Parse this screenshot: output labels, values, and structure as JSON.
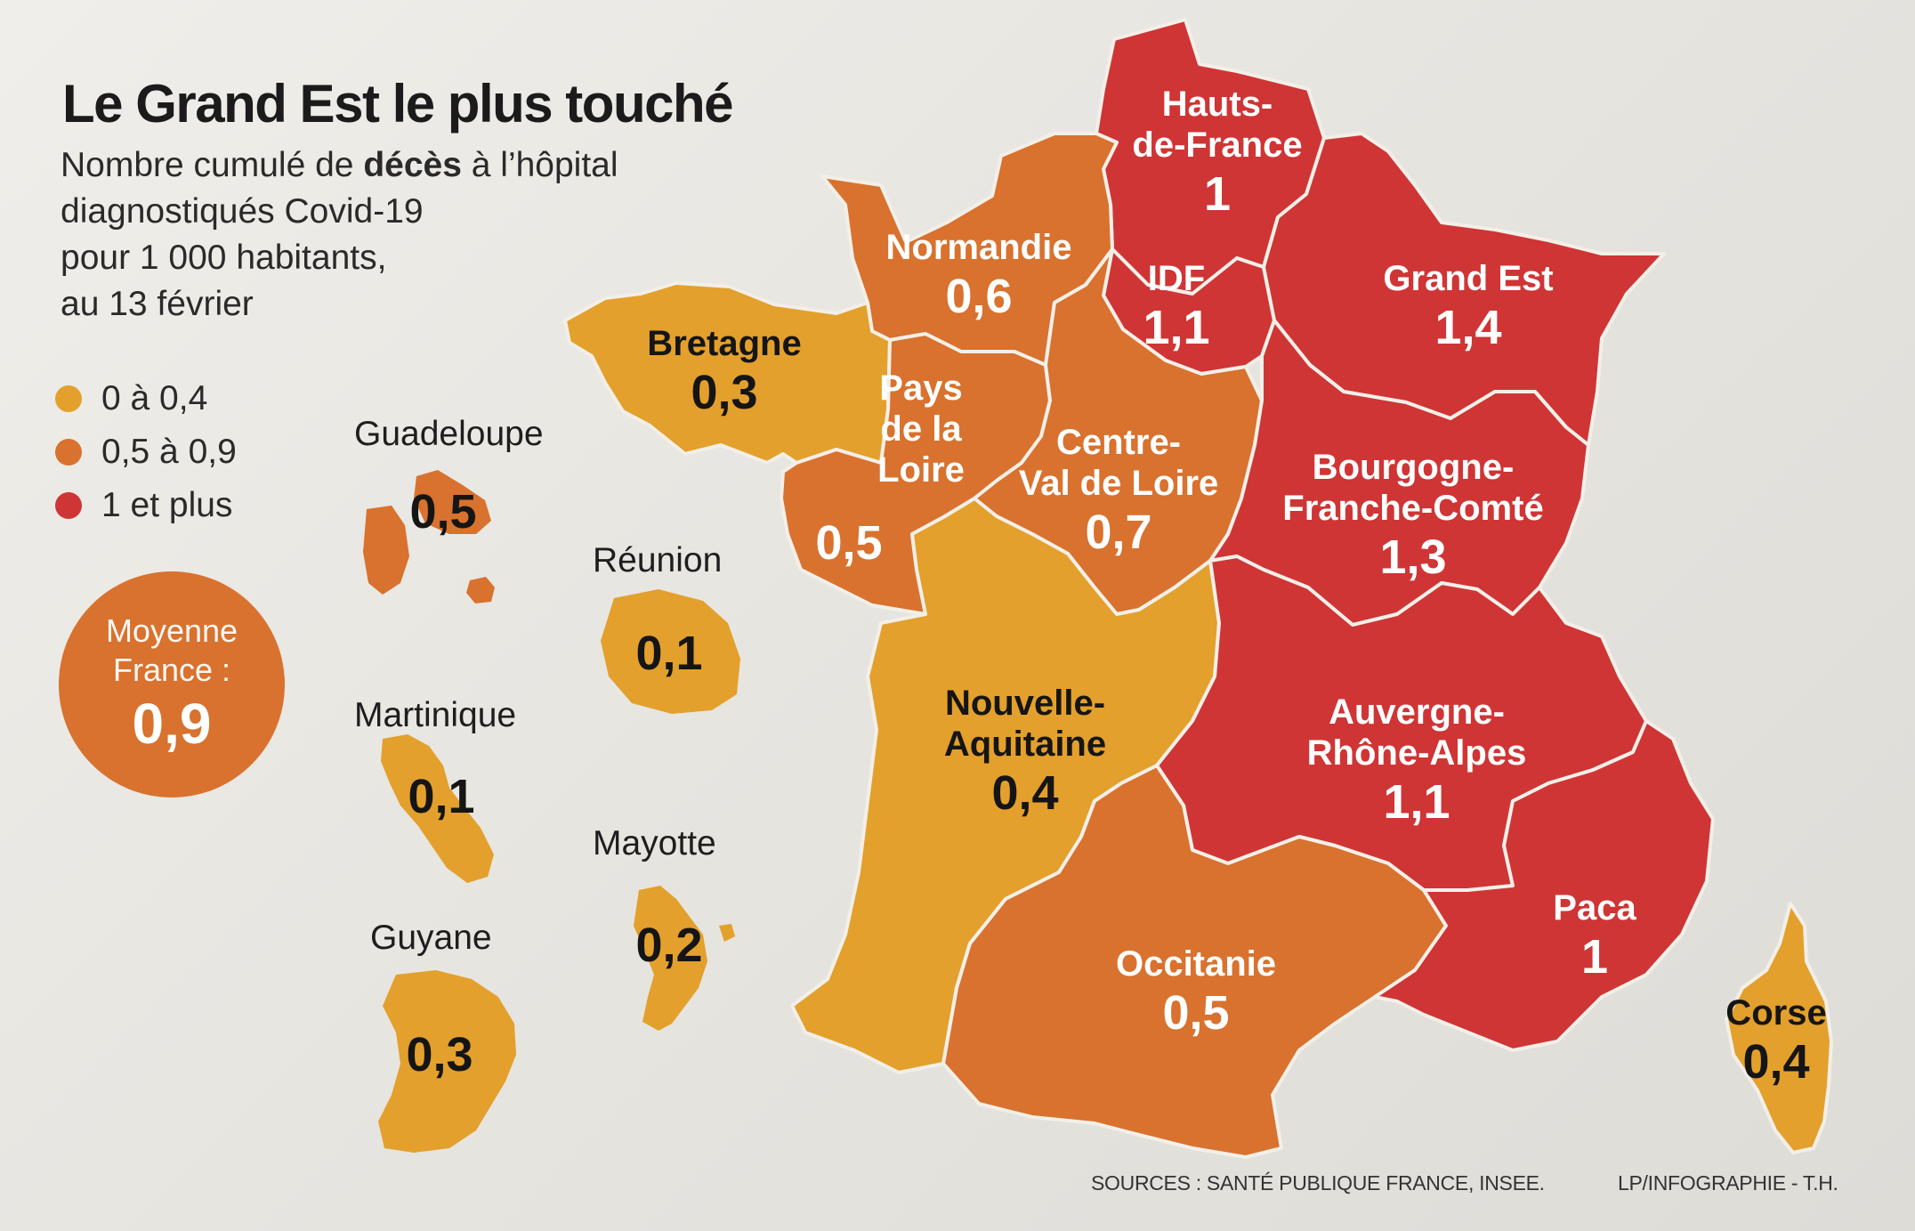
{
  "title": "Le Grand Est le plus touché",
  "subtitle": {
    "line1_pre": "Nombre cumulé de ",
    "line1_bold": "décès",
    "line1_post": " à l’hôpital",
    "line2": "diagnostiqués Covid-19",
    "line3": "pour 1 000 habitants,",
    "line4": "au 13 février"
  },
  "colors": {
    "low": "#e3a02c",
    "mid": "#d8722e",
    "high": "#cf3535",
    "average_circle": "#d8722e"
  },
  "legend": [
    {
      "label": "0 à 0,4",
      "level": "low"
    },
    {
      "label": "0,5 à 0,9",
      "level": "mid"
    },
    {
      "label": "1 et plus",
      "level": "high"
    }
  ],
  "average": {
    "label_line1": "Moyenne",
    "label_line2": "France :",
    "value": "0,9"
  },
  "regions": [
    {
      "key": "hauts_de_france",
      "name_lines": [
        "Hauts-",
        "de-France"
      ],
      "value": "1",
      "level": "high"
    },
    {
      "key": "normandie",
      "name_lines": [
        "Normandie"
      ],
      "value": "0,6",
      "level": "mid"
    },
    {
      "key": "idf",
      "name_lines": [
        "IDF"
      ],
      "value": "1,1",
      "level": "high"
    },
    {
      "key": "grand_est",
      "name_lines": [
        "Grand Est"
      ],
      "value": "1,4",
      "level": "high"
    },
    {
      "key": "bretagne",
      "name_lines": [
        "Bretagne"
      ],
      "value": "0,3",
      "level": "low"
    },
    {
      "key": "pays_de_la_loire",
      "name_lines": [
        "Pays",
        "de la",
        "Loire"
      ],
      "value": "0,5",
      "level": "mid"
    },
    {
      "key": "centre_val_de_loire",
      "name_lines": [
        "Centre-",
        "Val de Loire"
      ],
      "value": "0,7",
      "level": "mid"
    },
    {
      "key": "bourgogne_franche_comte",
      "name_lines": [
        "Bourgogne-",
        "Franche-Comté"
      ],
      "value": "1,3",
      "level": "high"
    },
    {
      "key": "nouvelle_aquitaine",
      "name_lines": [
        "Nouvelle-",
        "Aquitaine"
      ],
      "value": "0,4",
      "level": "low"
    },
    {
      "key": "auvergne_rhone_alpes",
      "name_lines": [
        "Auvergne-",
        "Rhône-Alpes"
      ],
      "value": "1,1",
      "level": "high"
    },
    {
      "key": "occitanie",
      "name_lines": [
        "Occitanie"
      ],
      "value": "0,5",
      "level": "mid"
    },
    {
      "key": "paca",
      "name_lines": [
        "Paca"
      ],
      "value": "1",
      "level": "high"
    },
    {
      "key": "corse",
      "name_lines": [
        "Corse"
      ],
      "value": "0,4",
      "level": "low"
    }
  ],
  "overseas": [
    {
      "key": "guadeloupe",
      "name": "Guadeloupe",
      "value": "0,5",
      "level": "mid"
    },
    {
      "key": "reunion",
      "name": "Réunion",
      "value": "0,1",
      "level": "low"
    },
    {
      "key": "martinique",
      "name": "Martinique",
      "value": "0,1",
      "level": "low"
    },
    {
      "key": "mayotte",
      "name": "Mayotte",
      "value": "0,2",
      "level": "low"
    },
    {
      "key": "guyane",
      "name": "Guyane",
      "value": "0,3",
      "level": "low"
    }
  ],
  "sources": "SOURCES : SANTÉ PUBLIQUE FRANCE, INSEE.",
  "credit": "LP/INFOGRAPHIE - T.H."
}
